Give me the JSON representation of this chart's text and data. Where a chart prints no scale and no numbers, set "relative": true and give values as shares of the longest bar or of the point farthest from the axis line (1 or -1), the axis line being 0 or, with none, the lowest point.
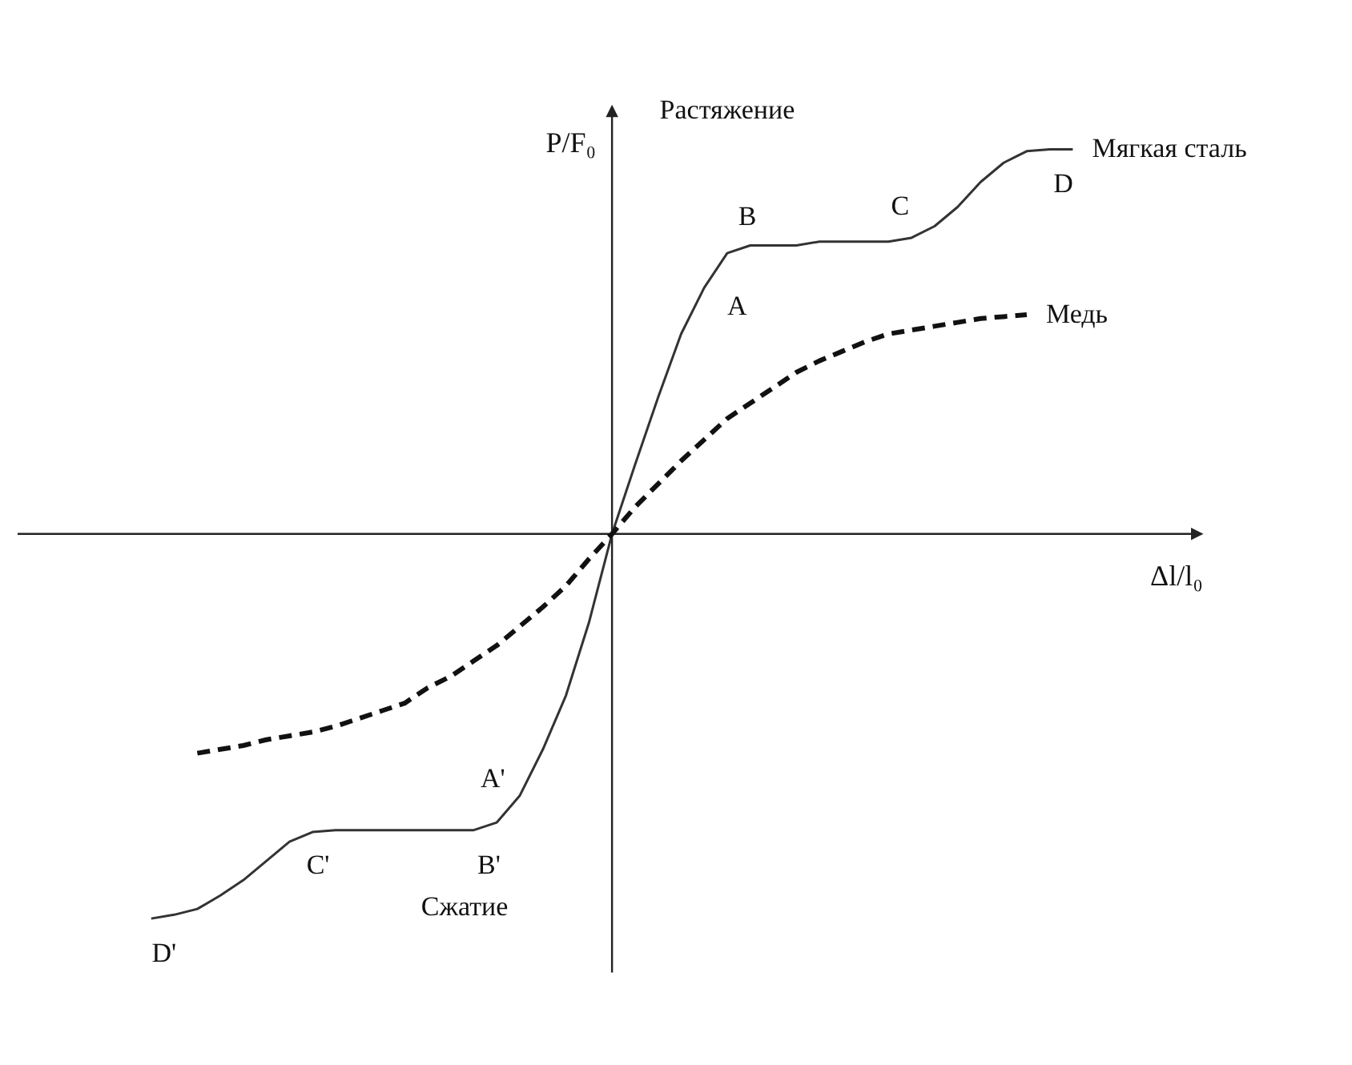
{
  "chart_data": {
    "type": "line",
    "relative": true,
    "xlabel": "Δl/l₀",
    "ylabel": "P/F₀",
    "tick_labels": false,
    "marker": "none",
    "categories": [
      null,
      null,
      null,
      null,
      null,
      null,
      null,
      null,
      null,
      null,
      null,
      null,
      null,
      null,
      null,
      null,
      null,
      null,
      null,
      null,
      null,
      null,
      null,
      null,
      null,
      null,
      null,
      null,
      null,
      null,
      null,
      null,
      null,
      null,
      null,
      null,
      null,
      null,
      null,
      null,
      null
    ],
    "series": [
      {
        "name": "Мягкая сталь",
        "color": "#333333",
        "line_style": "solid",
        "values": [
          -1.0,
          -0.99,
          -0.975,
          -0.94,
          -0.9,
          -0.85,
          -0.8,
          -0.775,
          -0.77,
          -0.77,
          -0.77,
          -0.77,
          -0.77,
          -0.77,
          -0.77,
          -0.75,
          -0.68,
          -0.56,
          -0.42,
          -0.23,
          0,
          0.18,
          0.355,
          0.52,
          0.64,
          0.73,
          0.75,
          0.75,
          0.75,
          0.76,
          0.76,
          0.76,
          0.76,
          0.77,
          0.8,
          0.85,
          0.915,
          0.965,
          0.995,
          1.0,
          1.0
        ]
      },
      {
        "name": "Медь",
        "color": "#111111",
        "line_style": "dashed",
        "values": [
          null,
          null,
          -0.57,
          -0.56,
          -0.55,
          -0.535,
          -0.525,
          -0.515,
          -0.5,
          -0.48,
          -0.46,
          -0.44,
          -0.4,
          -0.37,
          -0.33,
          -0.29,
          -0.24,
          -0.19,
          -0.135,
          -0.065,
          0,
          0.07,
          0.13,
          0.19,
          0.245,
          0.3,
          0.34,
          0.38,
          0.42,
          0.45,
          0.475,
          0.5,
          0.52,
          0.53,
          0.54,
          0.55,
          0.56,
          0.565,
          0.57,
          null,
          null
        ]
      }
    ],
    "annotations": [
      "Растяжение",
      "Сжатие",
      "A",
      "B",
      "C",
      "D",
      "A'",
      "B'",
      "C'",
      "D'"
    ]
  }
}
